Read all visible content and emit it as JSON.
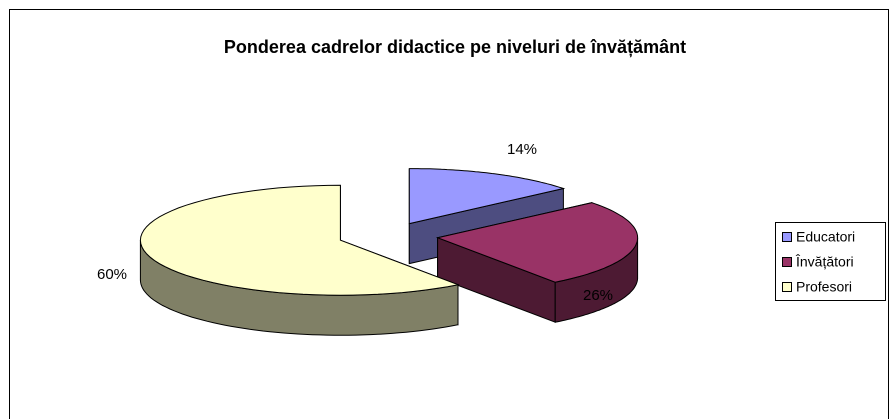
{
  "chart_data": {
    "type": "pie",
    "title": "Ponderea cadrelor didactice pe niveluri de învățământ",
    "categories": [
      "Educatori",
      "Învățători",
      "Profesori"
    ],
    "values": [
      14,
      26,
      60
    ],
    "value_labels": [
      "14%",
      "26%",
      "60%"
    ],
    "colors": [
      "#9999ff",
      "#993366",
      "#ffffcc"
    ],
    "legend": "right"
  }
}
